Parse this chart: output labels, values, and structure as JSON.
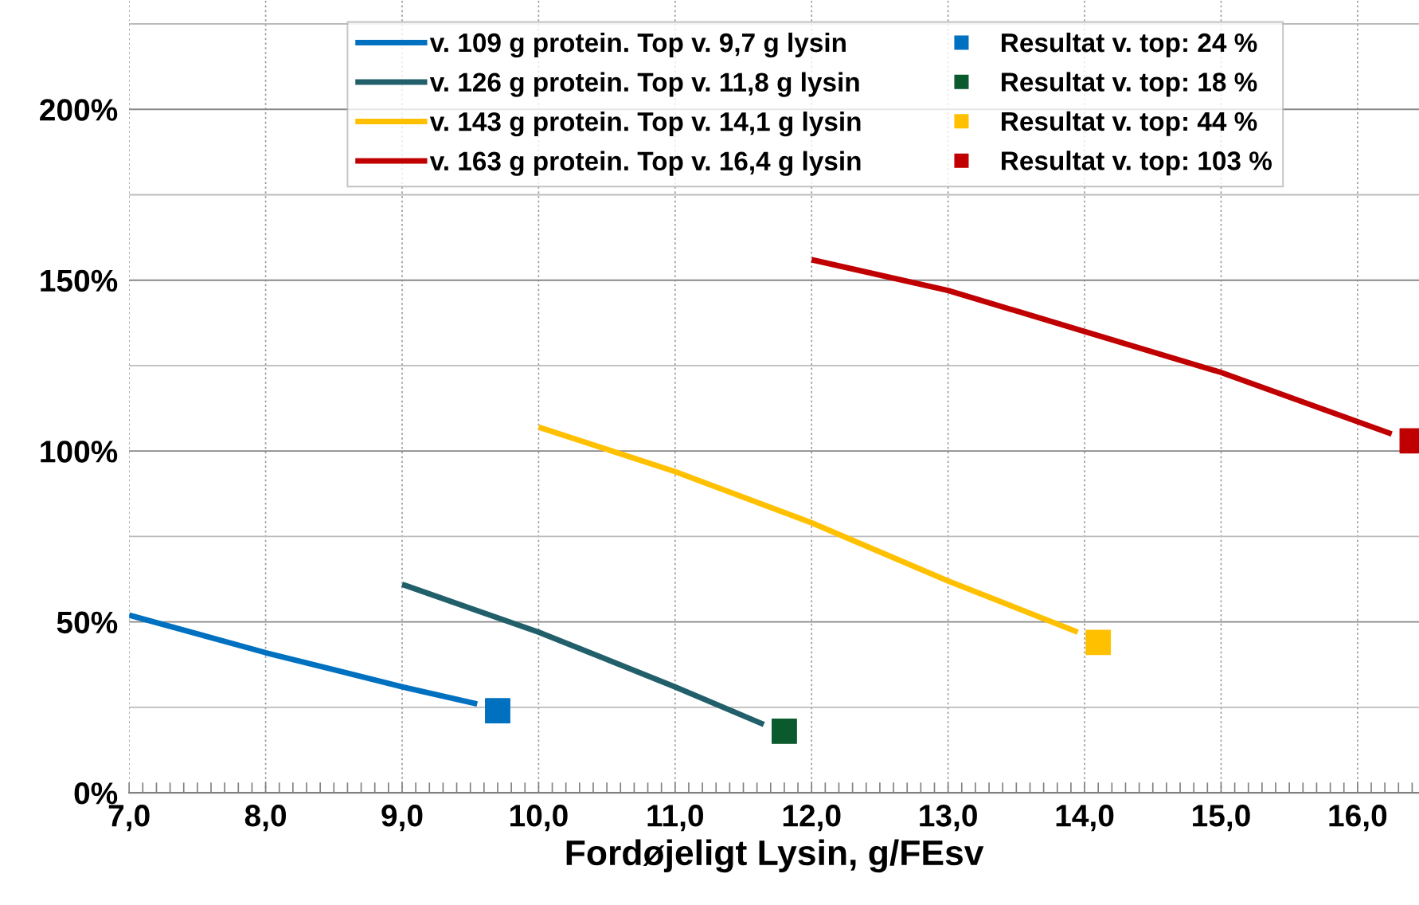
{
  "chart_data": {
    "type": "line",
    "xlabel": "Fordøjeligt Lysin, g/FEsv",
    "xlim": [
      7,
      16.45
    ],
    "ylim": [
      0,
      232
    ],
    "xticks": [
      {
        "value": 7,
        "label": "7,0"
      },
      {
        "value": 8,
        "label": "8,0"
      },
      {
        "value": 9,
        "label": "9,0"
      },
      {
        "value": 10,
        "label": "10,0"
      },
      {
        "value": 11,
        "label": "11,0"
      },
      {
        "value": 12,
        "label": "12,0"
      },
      {
        "value": 13,
        "label": "13,0"
      },
      {
        "value": 14,
        "label": "14,0"
      },
      {
        "value": 15,
        "label": "15,0"
      },
      {
        "value": 16,
        "label": "16,0"
      }
    ],
    "yticks": [
      {
        "value": 0,
        "label": "0%"
      },
      {
        "value": 25,
        "label": null
      },
      {
        "value": 50,
        "label": "50%"
      },
      {
        "value": 75,
        "label": null
      },
      {
        "value": 100,
        "label": "100%"
      },
      {
        "value": 125,
        "label": null
      },
      {
        "value": 150,
        "label": "150%"
      },
      {
        "value": 175,
        "label": null
      },
      {
        "value": 200,
        "label": "200%"
      },
      {
        "value": 225,
        "label": null
      }
    ],
    "grid": true,
    "legend": "top",
    "series": [
      {
        "name": "v. 109 g protein. Top v. 9,7 g lysin",
        "color": "#0070c0",
        "x": [
          7.0,
          8.0,
          8.5,
          9.0,
          9.55
        ],
        "values": [
          52,
          41,
          36,
          31,
          26
        ]
      },
      {
        "name": "v. 126 g protein. Top v. 11,8 g lysin",
        "color": "#215f6b",
        "x": [
          9.0,
          10.0,
          11.0,
          11.65
        ],
        "values": [
          61,
          47,
          31,
          20
        ]
      },
      {
        "name": "v. 143 g protein. Top v. 14,1 g lysin",
        "color": "#ffc000",
        "x": [
          10.0,
          11.0,
          12.0,
          13.0,
          13.95
        ],
        "values": [
          107,
          94,
          79,
          62,
          47
        ]
      },
      {
        "name": "v. 163 g protein. Top v. 16,4 g lysin",
        "color": "#c00000",
        "x": [
          12.0,
          13.0,
          14.0,
          15.0,
          16.25
        ],
        "values": [
          156,
          147,
          135,
          123,
          105
        ]
      },
      {
        "type": "scatter",
        "marker": "square",
        "name": "Resultat v. top: 24 %",
        "color": "#0070c0",
        "x": [
          9.7
        ],
        "values": [
          24
        ]
      },
      {
        "type": "scatter",
        "marker": "square",
        "name": "Resultat v. top: 18 %",
        "color": "#0b5a2e",
        "x": [
          11.8
        ],
        "values": [
          18
        ]
      },
      {
        "type": "scatter",
        "marker": "square",
        "name": "Resultat v. top: 44 %",
        "color": "#ffc000",
        "x": [
          14.1
        ],
        "values": [
          44
        ]
      },
      {
        "type": "scatter",
        "marker": "square",
        "name": "Resultat v. top: 103 %",
        "color": "#c00000",
        "x": [
          16.4
        ],
        "values": [
          103
        ]
      }
    ]
  }
}
